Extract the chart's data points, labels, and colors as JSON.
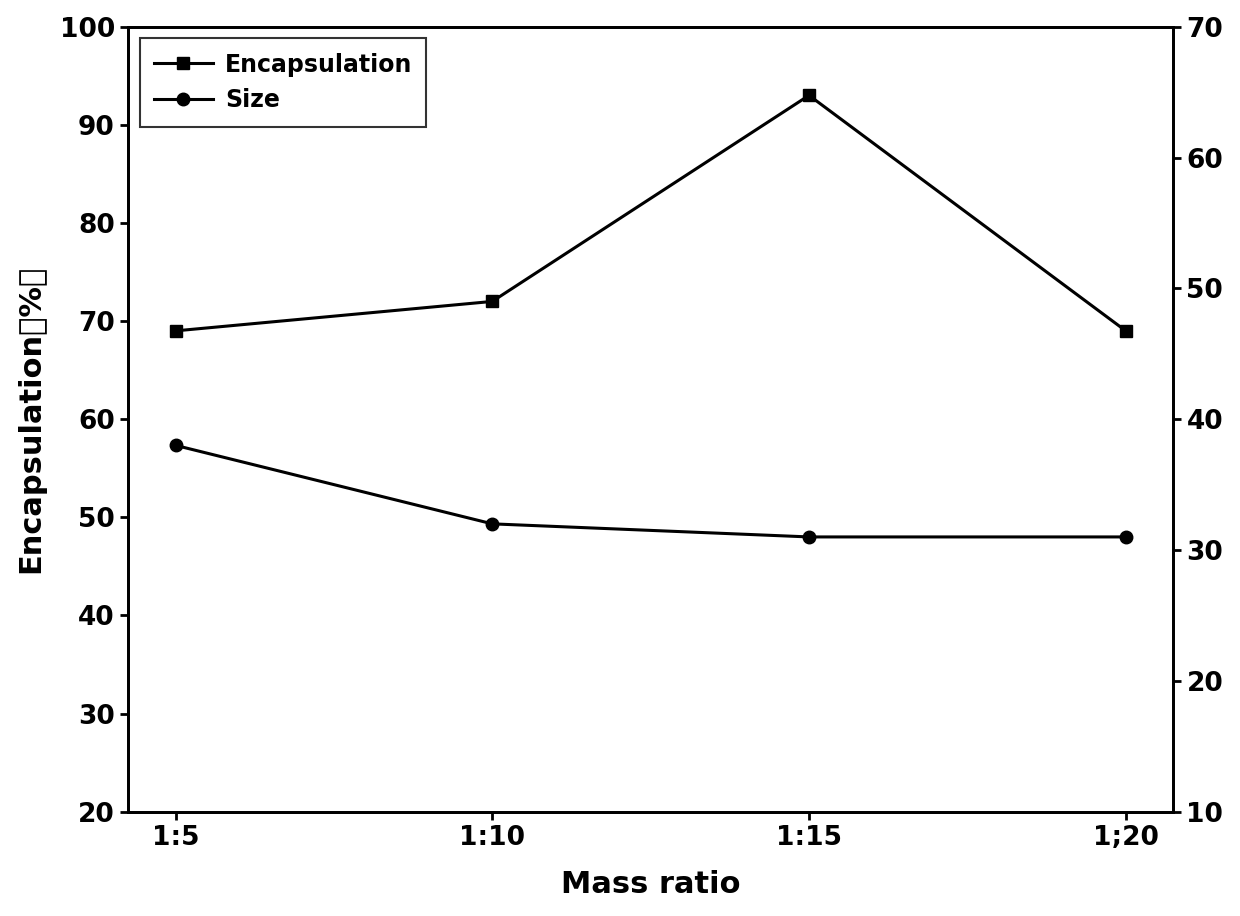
{
  "x_labels": [
    "1:5",
    "1:10",
    "1:15",
    "1;20"
  ],
  "x_positions": [
    0,
    1,
    2,
    3
  ],
  "encapsulation_values": [
    69.0,
    72.0,
    93.0,
    69.0
  ],
  "size_values": [
    38.0,
    32.0,
    31.0,
    31.0
  ],
  "left_ylabel": "Encapsulation（%）",
  "xlabel": "Mass ratio",
  "left_ylim": [
    20,
    100
  ],
  "right_ylim": [
    10,
    70
  ],
  "left_yticks": [
    20,
    30,
    40,
    50,
    60,
    70,
    80,
    90,
    100
  ],
  "right_yticks": [
    10,
    20,
    30,
    40,
    50,
    60,
    70
  ],
  "legend_encapsulation": "Encapsulation",
  "legend_size": "Size",
  "line_color": "#000000",
  "marker_square": "s",
  "marker_circle": "o",
  "marker_size": 9,
  "linewidth": 2.2,
  "font_size_label": 22,
  "font_size_tick": 19,
  "font_size_legend": 17
}
